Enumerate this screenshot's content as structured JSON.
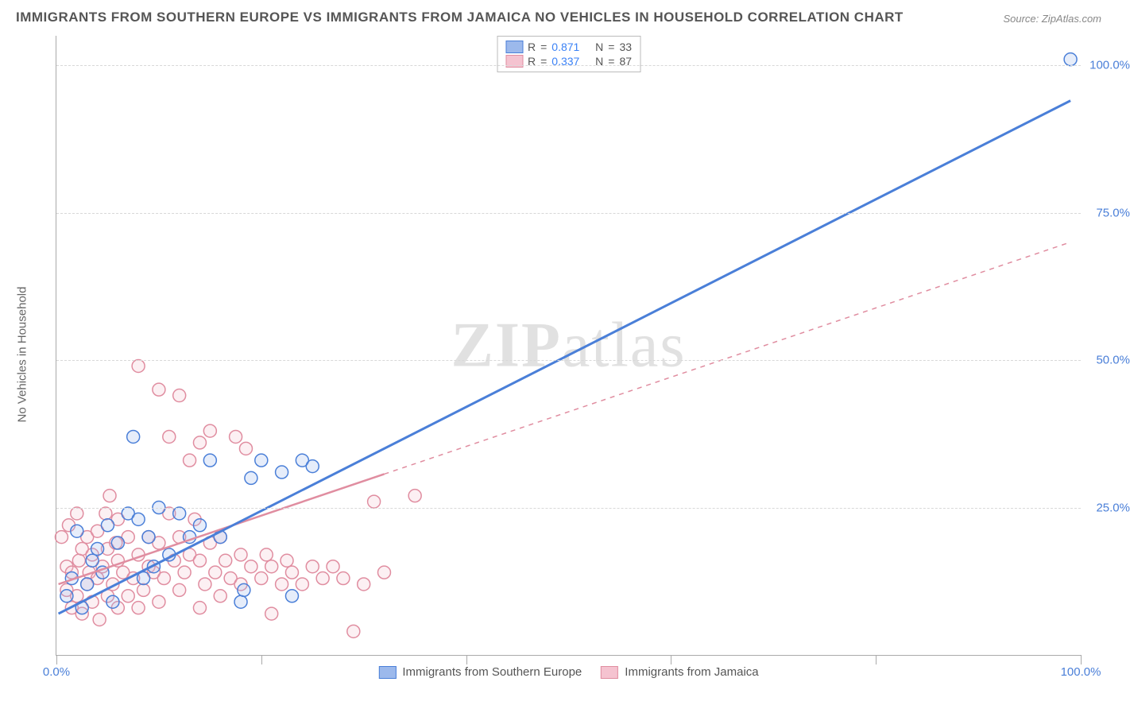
{
  "title": "IMMIGRANTS FROM SOUTHERN EUROPE VS IMMIGRANTS FROM JAMAICA NO VEHICLES IN HOUSEHOLD CORRELATION CHART",
  "source": "Source: ZipAtlas.com",
  "watermark_zip": "ZIP",
  "watermark_atlas": "atlas",
  "y_axis_label": "No Vehicles in Household",
  "chart": {
    "type": "scatter",
    "xlim": [
      0,
      100
    ],
    "ylim": [
      0,
      105
    ],
    "background_color": "#ffffff",
    "grid_color": "#d8d8d8",
    "grid_dashed": true,
    "x_ticks": [
      0,
      20,
      40,
      60,
      80,
      100
    ],
    "y_grid": [
      25,
      50,
      75,
      100
    ],
    "y_tick_labels": [
      {
        "v": 25,
        "label": "25.0%"
      },
      {
        "v": 50,
        "label": "50.0%"
      },
      {
        "v": 75,
        "label": "75.0%"
      },
      {
        "v": 100,
        "label": "100.0%"
      }
    ],
    "x_tick_labels": [
      {
        "v": 0,
        "label": "0.0%"
      },
      {
        "v": 100,
        "label": "100.0%"
      }
    ],
    "marker_radius": 8,
    "marker_stroke_width": 1.5,
    "marker_fill_opacity": 0.25,
    "series": [
      {
        "name": "Immigrants from Southern Europe",
        "color_stroke": "#4a7fd8",
        "color_fill": "#9cb9ec",
        "R": "0.871",
        "N": "33",
        "trend": {
          "x1": 0.2,
          "y1": 7,
          "x2": 99,
          "y2": 94,
          "solid_until_x": 99,
          "stroke_width": 3
        },
        "points": [
          [
            1,
            10
          ],
          [
            1.5,
            13
          ],
          [
            2,
            21
          ],
          [
            2.5,
            8
          ],
          [
            3,
            12
          ],
          [
            3.5,
            16
          ],
          [
            4,
            18
          ],
          [
            4.5,
            14
          ],
          [
            5,
            22
          ],
          [
            5.5,
            9
          ],
          [
            6,
            19
          ],
          [
            7,
            24
          ],
          [
            7.5,
            37
          ],
          [
            8,
            23
          ],
          [
            8.5,
            13
          ],
          [
            9,
            20
          ],
          [
            9.5,
            15
          ],
          [
            10,
            25
          ],
          [
            11,
            17
          ],
          [
            12,
            24
          ],
          [
            13,
            20
          ],
          [
            14,
            22
          ],
          [
            15,
            33
          ],
          [
            16,
            20
          ],
          [
            18,
            9
          ],
          [
            18.3,
            11
          ],
          [
            19,
            30
          ],
          [
            20,
            33
          ],
          [
            22,
            31
          ],
          [
            23,
            10
          ],
          [
            24,
            33
          ],
          [
            25,
            32
          ],
          [
            99,
            101
          ]
        ]
      },
      {
        "name": "Immigrants from Jamaica",
        "color_stroke": "#e08da0",
        "color_fill": "#f5c3d0",
        "R": "0.337",
        "N": "87",
        "trend": {
          "x1": 0.2,
          "y1": 12,
          "x2": 99,
          "y2": 70,
          "solid_until_x": 32,
          "stroke_width": 2.5
        },
        "points": [
          [
            0.5,
            20
          ],
          [
            1,
            11
          ],
          [
            1,
            15
          ],
          [
            1.2,
            22
          ],
          [
            1.5,
            8
          ],
          [
            1.5,
            14
          ],
          [
            2,
            10
          ],
          [
            2,
            24
          ],
          [
            2.2,
            16
          ],
          [
            2.5,
            7
          ],
          [
            2.5,
            18
          ],
          [
            3,
            12
          ],
          [
            3,
            20
          ],
          [
            3.2,
            14
          ],
          [
            3.5,
            9
          ],
          [
            3.5,
            17
          ],
          [
            4,
            13
          ],
          [
            4,
            21
          ],
          [
            4.2,
            6
          ],
          [
            4.5,
            15
          ],
          [
            4.8,
            24
          ],
          [
            5,
            10
          ],
          [
            5,
            18
          ],
          [
            5.2,
            27
          ],
          [
            5.5,
            12
          ],
          [
            5.8,
            19
          ],
          [
            6,
            8
          ],
          [
            6,
            16
          ],
          [
            6,
            23
          ],
          [
            6.5,
            14
          ],
          [
            7,
            10
          ],
          [
            7,
            20
          ],
          [
            7.5,
            13
          ],
          [
            8,
            17
          ],
          [
            8,
            8
          ],
          [
            8,
            49
          ],
          [
            8.5,
            11
          ],
          [
            9,
            15
          ],
          [
            9,
            20
          ],
          [
            9.5,
            14
          ],
          [
            10,
            9
          ],
          [
            10,
            19
          ],
          [
            10,
            45
          ],
          [
            10.5,
            13
          ],
          [
            11,
            24
          ],
          [
            11,
            37
          ],
          [
            11.5,
            16
          ],
          [
            12,
            11
          ],
          [
            12,
            20
          ],
          [
            12,
            44
          ],
          [
            12.5,
            14
          ],
          [
            13,
            17
          ],
          [
            13,
            33
          ],
          [
            13.5,
            23
          ],
          [
            14,
            8
          ],
          [
            14,
            16
          ],
          [
            14,
            36
          ],
          [
            14.5,
            12
          ],
          [
            15,
            19
          ],
          [
            15,
            38
          ],
          [
            15.5,
            14
          ],
          [
            16,
            10
          ],
          [
            16,
            20
          ],
          [
            16.5,
            16
          ],
          [
            17,
            13
          ],
          [
            17.5,
            37
          ],
          [
            18,
            17
          ],
          [
            18,
            12
          ],
          [
            18.5,
            35
          ],
          [
            19,
            15
          ],
          [
            20,
            13
          ],
          [
            20.5,
            17
          ],
          [
            21,
            15
          ],
          [
            21,
            7
          ],
          [
            22,
            12
          ],
          [
            22.5,
            16
          ],
          [
            23,
            14
          ],
          [
            24,
            12
          ],
          [
            25,
            15
          ],
          [
            26,
            13
          ],
          [
            27,
            15
          ],
          [
            28,
            13
          ],
          [
            29,
            4
          ],
          [
            30,
            12
          ],
          [
            31,
            26
          ],
          [
            32,
            14
          ],
          [
            35,
            27
          ]
        ]
      }
    ]
  },
  "legend_top": {
    "r_label": "R",
    "n_label": "N",
    "eq": "="
  },
  "legend_bottom": {
    "series1": "Immigrants from Southern Europe",
    "series2": "Immigrants from Jamaica"
  }
}
